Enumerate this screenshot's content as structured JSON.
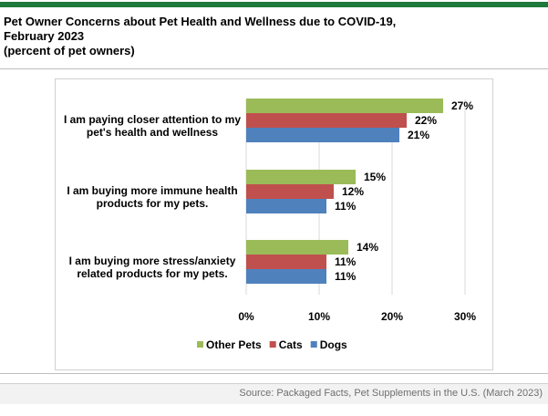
{
  "header": {
    "title_line1": "Pet Owner Concerns about Pet Health and Wellness due to COVID-19,",
    "title_line2": "February 2023",
    "title_line3": "(percent of pet owners)"
  },
  "colors": {
    "brand_bar": "#1e7a3c",
    "other_pets": "#9bbb59",
    "cats": "#c0504d",
    "dogs": "#4f81bd"
  },
  "chart_data": {
    "type": "bar",
    "orientation": "horizontal",
    "categories": [
      "I am paying closer attention to my pet's health and wellness",
      "I am buying more immune health products for my pets.",
      "I am buying more stress/anxiety related products for my pets."
    ],
    "category_lines": [
      [
        "I am paying closer attention to my",
        "pet's health and wellness"
      ],
      [
        "I am buying more immune health",
        "products for my pets."
      ],
      [
        "I am buying more stress/anxiety",
        "related products for my pets."
      ]
    ],
    "series": [
      {
        "name": "Other Pets",
        "values": [
          27,
          15,
          14
        ],
        "color": "#9bbb59"
      },
      {
        "name": "Cats",
        "values": [
          22,
          12,
          11
        ],
        "color": "#c0504d"
      },
      {
        "name": "Dogs",
        "values": [
          21,
          11,
          11
        ],
        "color": "#4f81bd"
      }
    ],
    "value_suffix": "%",
    "xlim": [
      0,
      30
    ],
    "xticks": [
      0,
      10,
      20,
      30
    ],
    "xtick_labels": [
      "0%",
      "10%",
      "20%",
      "30%"
    ],
    "grid": "vertical",
    "legend": "bottom"
  },
  "source": "Source: Packaged Facts, Pet Supplements in the U.S. (March 2023)"
}
